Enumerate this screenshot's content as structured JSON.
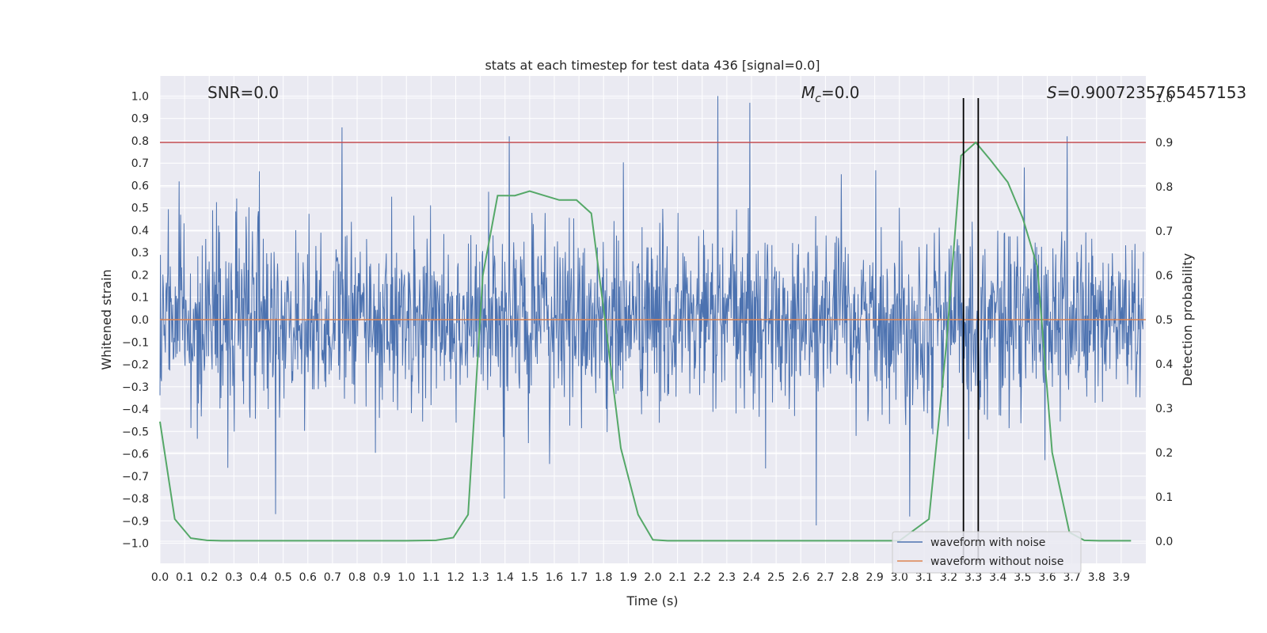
{
  "chart_data": {
    "type": "line",
    "title": "stats at each timestep for test data 436 [signal=0.0]",
    "xlabel": "Time (s)",
    "ylabel": "Whitened strain",
    "ylabel_right": "Detection probability",
    "xlim": [
      0.0,
      4.0
    ],
    "ylim": [
      -1.09,
      1.09
    ],
    "ylim_right": [
      -0.05,
      1.05
    ],
    "x_ticks": [
      "0.0",
      "0.1",
      "0.2",
      "0.3",
      "0.4",
      "0.5",
      "0.6",
      "0.7",
      "0.8",
      "0.9",
      "1.0",
      "1.1",
      "1.2",
      "1.3",
      "1.4",
      "1.5",
      "1.6",
      "1.7",
      "1.8",
      "1.9",
      "2.0",
      "2.1",
      "2.2",
      "2.3",
      "2.4",
      "2.5",
      "2.6",
      "2.7",
      "2.8",
      "2.9",
      "3.0",
      "3.1",
      "3.2",
      "3.3",
      "3.4",
      "3.5",
      "3.6",
      "3.7",
      "3.8",
      "3.9"
    ],
    "y_ticks": [
      "1.0",
      "0.9",
      "0.8",
      "0.7",
      "0.6",
      "0.5",
      "0.4",
      "0.3",
      "0.2",
      "0.1",
      "0.0",
      "−0.1",
      "−0.2",
      "−0.3",
      "−0.4",
      "−0.5",
      "−0.6",
      "−0.7",
      "−0.8",
      "−0.9",
      "−1.0"
    ],
    "y_right_ticks": [
      "1.0",
      "0.9",
      "0.8",
      "0.7",
      "0.6",
      "0.5",
      "0.4",
      "0.3",
      "0.2",
      "0.1",
      "0.0"
    ],
    "grid": true,
    "legend_position": "lower-right",
    "annotations": {
      "snr": "SNR=0.0",
      "mc_symbol": "M",
      "mc_sub": "c",
      "mc_value": "=0.0",
      "s_symbol": "S",
      "s_value": "=0.9007235765457153"
    },
    "series": [
      {
        "name": "waveform with noise",
        "color": "#4c72b0",
        "axis": "left",
        "description_values": "dense noise, amplitude mostly within ±0.6",
        "sample_rate_points": 2000,
        "peaks": [
          {
            "x": 0.74,
            "y": 0.86
          },
          {
            "x": 1.42,
            "y": 0.82
          },
          {
            "x": 2.27,
            "y": 1.0
          },
          {
            "x": 2.4,
            "y": 0.97
          },
          {
            "x": 2.67,
            "y": -0.92
          },
          {
            "x": 0.47,
            "y": -0.87
          },
          {
            "x": 3.69,
            "y": 0.82
          },
          {
            "x": 3.05,
            "y": -0.88
          },
          {
            "x": 1.4,
            "y": -0.8
          }
        ]
      },
      {
        "name": "waveform without noise",
        "color": "#dd8452",
        "axis": "left",
        "x": [
          0.0,
          4.0
        ],
        "y": [
          0.0,
          0.0
        ]
      },
      {
        "name": "",
        "color": "#55a868",
        "axis": "right",
        "x": [
          0.0,
          0.06,
          0.125,
          0.19,
          0.25,
          0.5,
          0.75,
          1.0,
          1.12,
          1.19,
          1.25,
          1.31,
          1.37,
          1.44,
          1.5,
          1.56,
          1.62,
          1.69,
          1.75,
          1.81,
          1.87,
          1.94,
          2.0,
          2.06,
          2.5,
          3.0,
          3.12,
          3.19,
          3.25,
          3.31,
          3.37,
          3.44,
          3.5,
          3.56,
          3.62,
          3.69,
          3.75,
          3.81,
          3.94
        ],
        "y": [
          0.27,
          0.05,
          0.007,
          0.002,
          0.001,
          0.001,
          0.001,
          0.001,
          0.002,
          0.008,
          0.06,
          0.6,
          0.78,
          0.78,
          0.79,
          0.78,
          0.77,
          0.77,
          0.74,
          0.48,
          0.21,
          0.06,
          0.003,
          0.001,
          0.001,
          0.001,
          0.05,
          0.44,
          0.87,
          0.9,
          0.86,
          0.81,
          0.73,
          0.62,
          0.2,
          0.02,
          0.002,
          0.001,
          0.001
        ]
      }
    ],
    "threshold_line": {
      "y_right": 0.9,
      "color": "#c44e52"
    },
    "vertical_lines": [
      3.26,
      3.32
    ],
    "vertical_line_color": "#000000"
  },
  "colors": {
    "plot_bg": "#eaeaf2",
    "grid": "#ffffff",
    "page_bg": "#ffffff"
  }
}
